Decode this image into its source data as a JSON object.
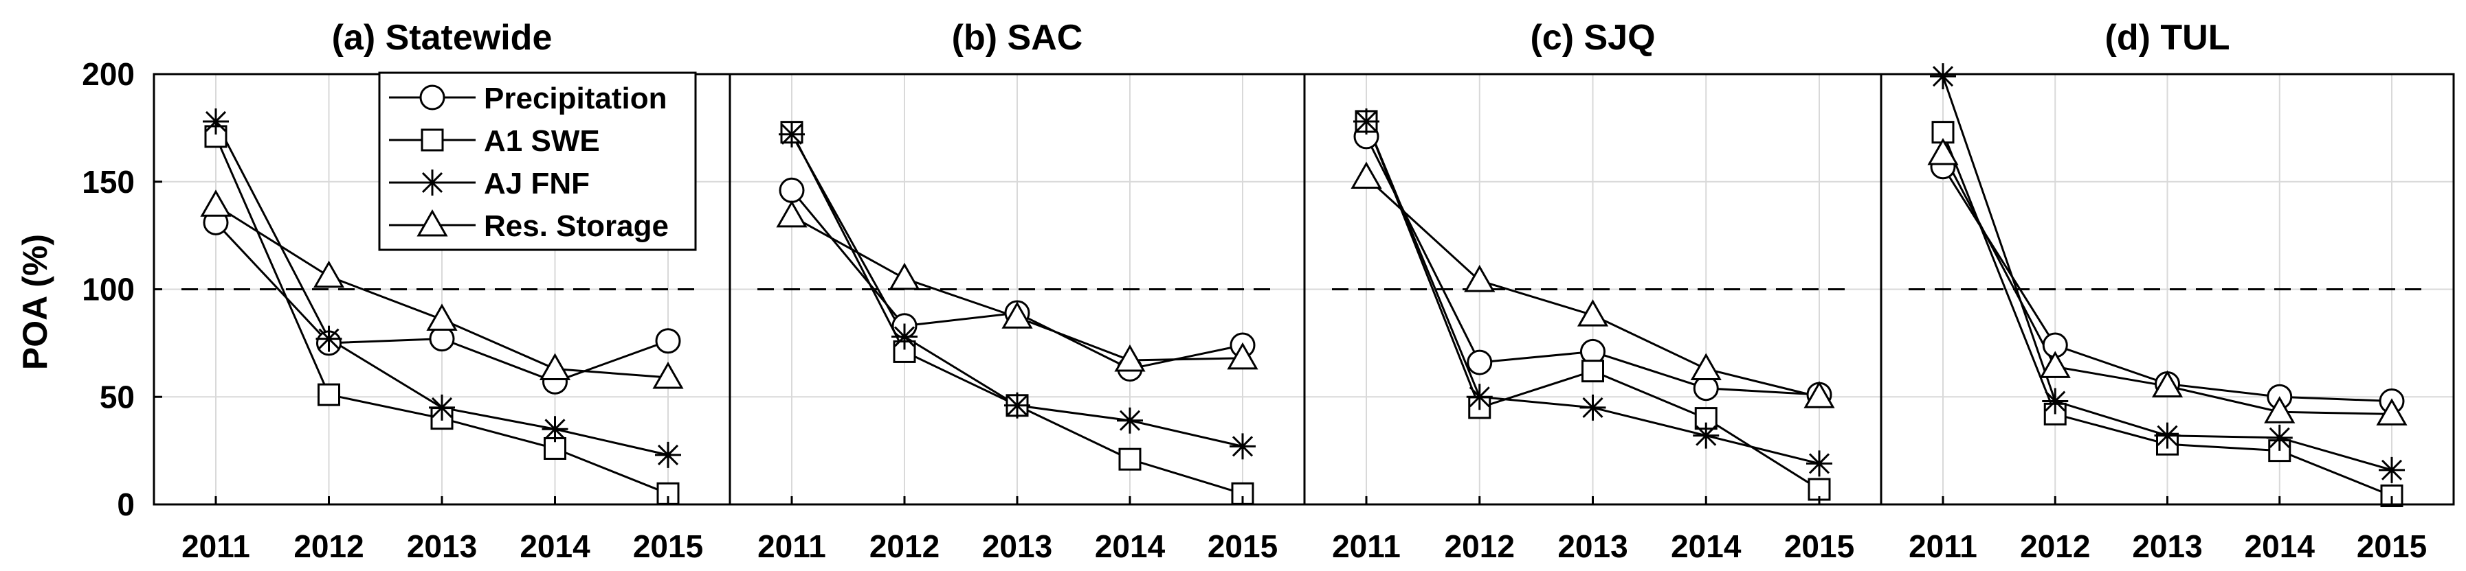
{
  "chart_data": {
    "type": "line",
    "ylabel": "POA (%)",
    "ylim": [
      0,
      200
    ],
    "yticks": [
      "0",
      "50",
      "100",
      "150",
      "200"
    ],
    "x": [
      "2011",
      "2012",
      "2013",
      "2014",
      "2015"
    ],
    "reference_line": 100,
    "grid": true,
    "legend_position": "top-left of first panel",
    "legend": [
      "Precipitation",
      "A1 SWE",
      "AJ FNF",
      "Res. Storage"
    ],
    "panels": [
      {
        "title": "(a) Statewide",
        "series": [
          {
            "name": "Precipitation",
            "marker": "circle",
            "values": [
              131,
              75,
              77,
              57,
              76
            ]
          },
          {
            "name": "A1 SWE",
            "marker": "square",
            "values": [
              171,
              51,
              40,
              26,
              5
            ]
          },
          {
            "name": "AJ FNF",
            "marker": "star",
            "values": [
              178,
              77,
              45,
              35,
              23
            ]
          },
          {
            "name": "Res. Storage",
            "marker": "triangle",
            "values": [
              139,
              106,
              86,
              63,
              59
            ]
          }
        ]
      },
      {
        "title": "(b) SAC",
        "series": [
          {
            "name": "Precipitation",
            "marker": "circle",
            "values": [
              146,
              83,
              89,
              63,
              74
            ]
          },
          {
            "name": "A1 SWE",
            "marker": "square",
            "values": [
              173,
              71,
              46,
              21,
              5
            ]
          },
          {
            "name": "AJ FNF",
            "marker": "star",
            "values": [
              172,
              78,
              46,
              39,
              27
            ]
          },
          {
            "name": "Res. Storage",
            "marker": "triangle",
            "values": [
              134,
              105,
              87,
              67,
              68
            ]
          }
        ]
      },
      {
        "title": "(c) SJQ",
        "series": [
          {
            "name": "Precipitation",
            "marker": "circle",
            "values": [
              171,
              66,
              71,
              54,
              51
            ]
          },
          {
            "name": "A1 SWE",
            "marker": "square",
            "values": [
              178,
              45,
              62,
              40,
              7
            ]
          },
          {
            "name": "AJ FNF",
            "marker": "star",
            "values": [
              178,
              50,
              45,
              32,
              19
            ]
          },
          {
            "name": "Res. Storage",
            "marker": "triangle",
            "values": [
              152,
              104,
              88,
              63,
              50
            ]
          }
        ]
      },
      {
        "title": "(d) TUL",
        "series": [
          {
            "name": "Precipitation",
            "marker": "circle",
            "values": [
              157,
              74,
              56,
              50,
              48
            ]
          },
          {
            "name": "A1 SWE",
            "marker": "square",
            "values": [
              173,
              42,
              28,
              25,
              4
            ]
          },
          {
            "name": "AJ FNF",
            "marker": "star",
            "values": [
              199,
              48,
              32,
              31,
              16
            ]
          },
          {
            "name": "Res. Storage",
            "marker": "triangle",
            "values": [
              163,
              64,
              55,
              43,
              42
            ]
          }
        ]
      }
    ]
  }
}
